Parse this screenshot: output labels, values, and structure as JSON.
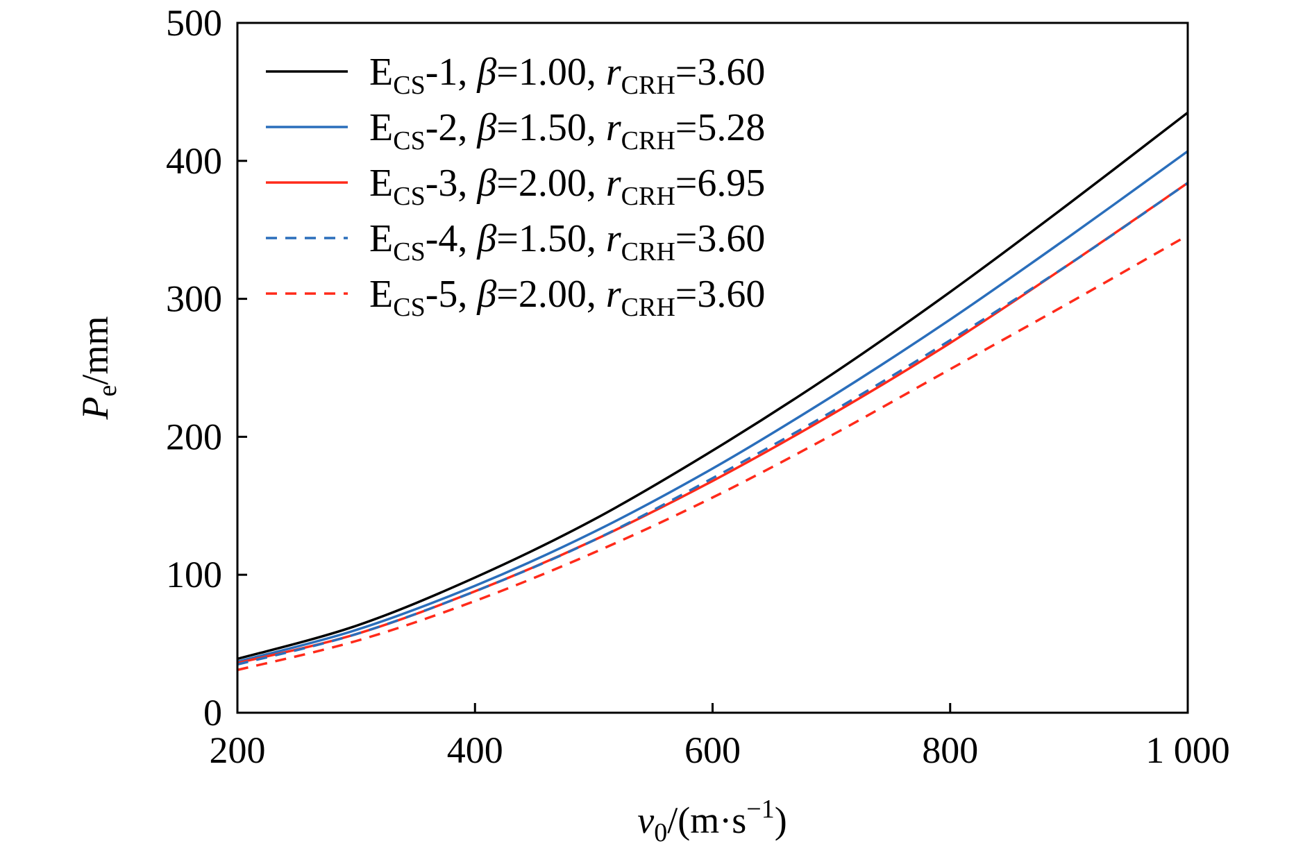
{
  "chart_data": {
    "type": "line",
    "xlabel": {
      "var": "v",
      "sub": "0",
      "unit_pre": "/(m·s",
      "sup": "−1",
      "unit_post": ")"
    },
    "ylabel": {
      "var": "P",
      "sub": "e",
      "unit": "/mm"
    },
    "xlim": [
      200,
      1000
    ],
    "ylim": [
      0,
      500
    ],
    "x_ticks": [
      {
        "value": 200,
        "label": "200"
      },
      {
        "value": 400,
        "label": "400"
      },
      {
        "value": 600,
        "label": "600"
      },
      {
        "value": 800,
        "label": "800"
      },
      {
        "value": 1000,
        "label": "1 000"
      }
    ],
    "y_ticks": [
      {
        "value": 0,
        "label": "0"
      },
      {
        "value": 100,
        "label": "100"
      },
      {
        "value": 200,
        "label": "200"
      },
      {
        "value": 300,
        "label": "300"
      },
      {
        "value": 400,
        "label": "400"
      },
      {
        "value": 500,
        "label": "500"
      }
    ],
    "grid": false,
    "legend_position": "top-left",
    "x": [
      200,
      300,
      400,
      500,
      600,
      700,
      800,
      900,
      1000
    ],
    "series": [
      {
        "name": "ECS-1",
        "label_main": "E",
        "label_sub": "CS",
        "label_mid": "-1, ",
        "beta_text": "=1.00, ",
        "r_sub": "CRH",
        "r_val": "=3.60",
        "color": "#000000",
        "dash": "solid",
        "values": [
          39,
          63,
          98,
          140,
          190,
          245,
          305,
          369,
          435
        ]
      },
      {
        "name": "ECS-2",
        "label_main": "E",
        "label_sub": "CS",
        "label_mid": "-2, ",
        "beta_text": "=1.50, ",
        "r_sub": "CRH",
        "r_val": "=5.28",
        "color": "#2a6ebb",
        "dash": "solid",
        "values": [
          37,
          60,
          92,
          131,
          177,
          229,
          285,
          345,
          407
        ]
      },
      {
        "name": "ECS-3",
        "label_main": "E",
        "label_sub": "CS",
        "label_mid": "-3, ",
        "beta_text": "=2.00, ",
        "r_sub": "CRH",
        "r_val": "=6.95",
        "color": "#ff2a1a",
        "dash": "solid",
        "values": [
          36,
          57,
          88,
          125,
          168,
          216,
          268,
          325,
          384
        ]
      },
      {
        "name": "ECS-4",
        "label_main": "E",
        "label_sub": "CS",
        "label_mid": "-4, ",
        "beta_text": "=1.50, ",
        "r_sub": "CRH",
        "r_val": "=3.60",
        "color": "#2a6ebb",
        "dash": "dashed",
        "values": [
          35,
          57,
          88,
          125,
          170,
          218,
          270,
          325,
          384
        ]
      },
      {
        "name": "ECS-5",
        "label_main": "E",
        "label_sub": "CS",
        "label_mid": "-5, ",
        "beta_text": "=2.00, ",
        "r_sub": "CRH",
        "r_val": "=3.60",
        "color": "#ff2a1a",
        "dash": "dashed",
        "values": [
          31,
          52,
          81,
          116,
          156,
          201,
          249,
          297,
          346
        ]
      }
    ],
    "legend_beta_symbol": "β",
    "legend_r_symbol": "r"
  }
}
